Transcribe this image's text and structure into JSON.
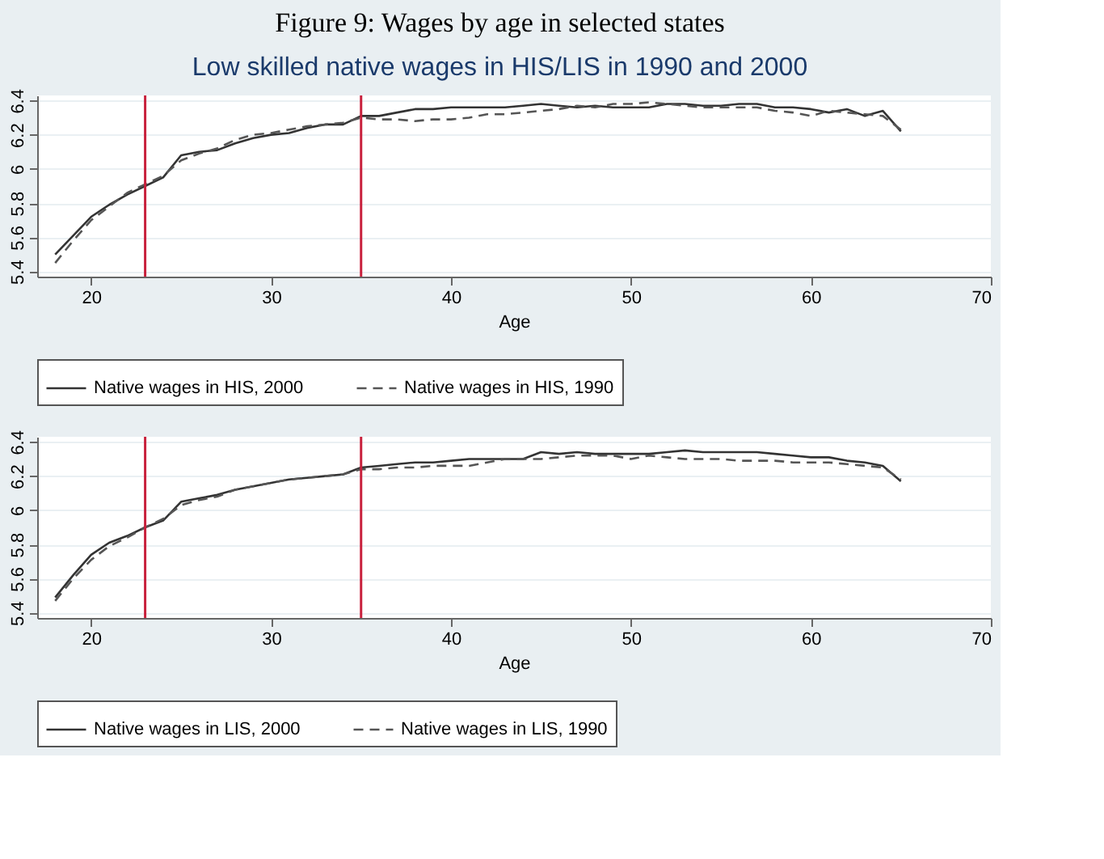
{
  "chart_data": [
    {
      "type": "line",
      "title": "Figure 9: Wages by age in selected states",
      "subtitle": "Low skilled native wages in HIS/LIS in 1990 and 2000",
      "xlabel": "Age",
      "x": [
        18,
        19,
        20,
        21,
        22,
        23,
        24,
        25,
        26,
        27,
        28,
        29,
        30,
        31,
        32,
        33,
        34,
        35,
        36,
        37,
        38,
        39,
        40,
        41,
        42,
        43,
        44,
        45,
        46,
        47,
        48,
        49,
        50,
        51,
        52,
        53,
        54,
        55,
        56,
        57,
        58,
        59,
        60,
        61,
        62,
        63,
        64,
        65
      ],
      "series": [
        {
          "name": "Native wages in HIS, 2000",
          "color": "#333333",
          "line_style": "solid",
          "values": [
            5.5,
            5.61,
            5.72,
            5.79,
            5.85,
            5.9,
            5.95,
            6.08,
            6.1,
            6.11,
            6.15,
            6.18,
            6.2,
            6.21,
            6.24,
            6.26,
            6.26,
            6.31,
            6.31,
            6.33,
            6.35,
            6.35,
            6.36,
            6.36,
            6.36,
            6.36,
            6.37,
            6.38,
            6.37,
            6.36,
            6.37,
            6.36,
            6.36,
            6.36,
            6.38,
            6.38,
            6.37,
            6.37,
            6.38,
            6.38,
            6.36,
            6.36,
            6.35,
            6.33,
            6.35,
            6.31,
            6.34,
            6.22
          ]
        },
        {
          "name": "Native wages in HIS, 1990",
          "color": "#555555",
          "line_style": "dashed",
          "values": [
            5.45,
            5.58,
            5.7,
            5.78,
            5.86,
            5.91,
            5.96,
            6.05,
            6.09,
            6.12,
            6.17,
            6.2,
            6.21,
            6.23,
            6.25,
            6.26,
            6.27,
            6.3,
            6.29,
            6.29,
            6.28,
            6.29,
            6.29,
            6.3,
            6.32,
            6.32,
            6.33,
            6.34,
            6.35,
            6.37,
            6.36,
            6.38,
            6.38,
            6.39,
            6.38,
            6.37,
            6.36,
            6.36,
            6.36,
            6.36,
            6.34,
            6.33,
            6.31,
            6.34,
            6.33,
            6.32,
            6.31,
            6.23
          ]
        }
      ],
      "xlim": [
        17,
        70
      ],
      "xticks": [
        20,
        30,
        40,
        50,
        60,
        70
      ],
      "ylim": [
        5.37,
        6.43
      ],
      "yticks": [
        5.4,
        5.6,
        5.8,
        6,
        6.2,
        6.4
      ],
      "grid": "y",
      "legend": "bottom",
      "ref_lines": [
        {
          "axis": "x",
          "value": 23,
          "color": "#c8203c"
        },
        {
          "axis": "x",
          "value": 35,
          "color": "#c8203c"
        }
      ]
    },
    {
      "type": "line",
      "xlabel": "Age",
      "x": [
        18,
        19,
        20,
        21,
        22,
        23,
        24,
        25,
        26,
        27,
        28,
        29,
        30,
        31,
        32,
        33,
        34,
        35,
        36,
        37,
        38,
        39,
        40,
        41,
        42,
        43,
        44,
        45,
        46,
        47,
        48,
        49,
        50,
        51,
        52,
        53,
        54,
        55,
        56,
        57,
        58,
        59,
        60,
        61,
        62,
        63,
        64,
        65
      ],
      "series": [
        {
          "name": "Native wages in LIS, 2000",
          "color": "#333333",
          "line_style": "solid",
          "values": [
            5.49,
            5.62,
            5.74,
            5.81,
            5.85,
            5.9,
            5.94,
            6.05,
            6.07,
            6.09,
            6.12,
            6.14,
            6.16,
            6.18,
            6.19,
            6.2,
            6.21,
            6.25,
            6.26,
            6.27,
            6.28,
            6.28,
            6.29,
            6.3,
            6.3,
            6.3,
            6.3,
            6.34,
            6.33,
            6.34,
            6.33,
            6.33,
            6.33,
            6.33,
            6.34,
            6.35,
            6.34,
            6.34,
            6.34,
            6.34,
            6.33,
            6.32,
            6.31,
            6.31,
            6.29,
            6.28,
            6.26,
            6.17
          ]
        },
        {
          "name": "Native wages in LIS, 1990",
          "color": "#555555",
          "line_style": "dashed",
          "values": [
            5.47,
            5.6,
            5.71,
            5.79,
            5.84,
            5.9,
            5.95,
            6.03,
            6.06,
            6.08,
            6.12,
            6.14,
            6.16,
            6.18,
            6.19,
            6.2,
            6.21,
            6.24,
            6.24,
            6.25,
            6.25,
            6.26,
            6.26,
            6.26,
            6.28,
            6.3,
            6.3,
            6.3,
            6.31,
            6.32,
            6.32,
            6.32,
            6.3,
            6.32,
            6.31,
            6.3,
            6.3,
            6.3,
            6.29,
            6.29,
            6.29,
            6.28,
            6.28,
            6.28,
            6.27,
            6.26,
            6.25,
            6.18
          ]
        }
      ],
      "xlim": [
        17,
        70
      ],
      "xticks": [
        20,
        30,
        40,
        50,
        60,
        70
      ],
      "ylim": [
        5.37,
        6.43
      ],
      "yticks": [
        5.4,
        5.6,
        5.8,
        6,
        6.2,
        6.4
      ],
      "grid": "y",
      "legend": "bottom",
      "ref_lines": [
        {
          "axis": "x",
          "value": 23,
          "color": "#c8203c"
        },
        {
          "axis": "x",
          "value": 35,
          "color": "#c8203c"
        }
      ]
    }
  ]
}
